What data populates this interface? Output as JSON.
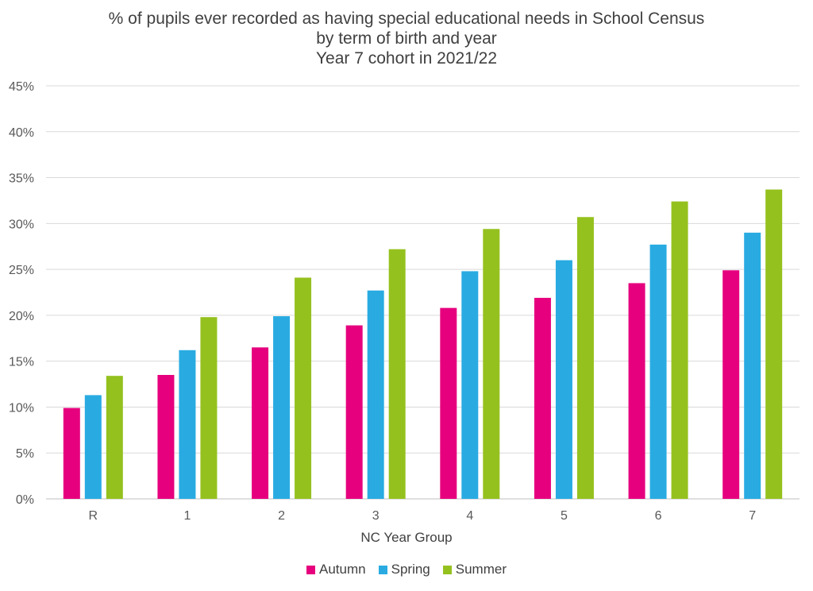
{
  "chart_data": {
    "type": "bar",
    "title_lines": [
      "% of pupils ever recorded as having special educational needs in School Census",
      "by term of birth and year",
      "Year 7 cohort in 2021/22"
    ],
    "xlabel": "NC Year Group",
    "ylabel": "",
    "categories": [
      "R",
      "1",
      "2",
      "3",
      "4",
      "5",
      "6",
      "7"
    ],
    "ylim": [
      0,
      0.45
    ],
    "yticks": [
      "0%",
      "5%",
      "10%",
      "15%",
      "20%",
      "25%",
      "30%",
      "35%",
      "40%",
      "45%"
    ],
    "ytick_values": [
      0,
      0.05,
      0.1,
      0.15,
      0.2,
      0.25,
      0.3,
      0.35,
      0.4,
      0.45
    ],
    "grid": true,
    "legend_position": "bottom",
    "series": [
      {
        "name": "Autumn",
        "color": "#E6007E",
        "values": [
          0.099,
          0.135,
          0.165,
          0.189,
          0.208,
          0.219,
          0.235,
          0.249
        ]
      },
      {
        "name": "Spring",
        "color": "#29ABE2",
        "values": [
          0.113,
          0.162,
          0.199,
          0.227,
          0.248,
          0.26,
          0.277,
          0.29
        ]
      },
      {
        "name": "Summer",
        "color": "#95C11F",
        "values": [
          0.134,
          0.198,
          0.241,
          0.272,
          0.294,
          0.307,
          0.324,
          0.337
        ]
      }
    ]
  }
}
